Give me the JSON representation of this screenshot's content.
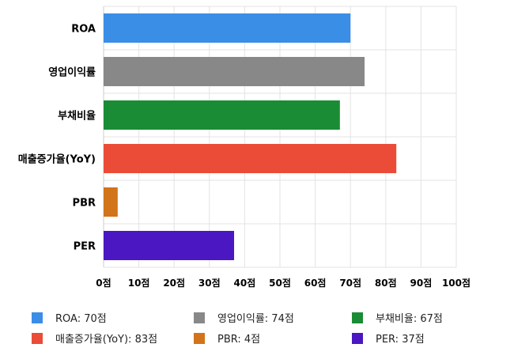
{
  "chart_data": {
    "type": "bar",
    "orientation": "horizontal",
    "categories": [
      "ROA",
      "영업이익률",
      "부채비율",
      "매출증가율(YoY)",
      "PBR",
      "PER"
    ],
    "values": [
      70,
      74,
      67,
      83,
      4,
      37
    ],
    "colors": [
      "#3a8ee6",
      "#888888",
      "#1a8c35",
      "#eb4c37",
      "#d1741a",
      "#4a17c3"
    ],
    "xlim": [
      0,
      100
    ],
    "x_ticks": [
      "0점",
      "10점",
      "20점",
      "30점",
      "40점",
      "50점",
      "60점",
      "70점",
      "80점",
      "90점",
      "100점"
    ],
    "grid": true,
    "legend_position": "bottom",
    "legend": [
      "ROA: 70점",
      "영업이익률: 74점",
      "부채비율: 67점",
      "매출증가율(YoY): 83점",
      "PBR: 4점",
      "PER: 37점"
    ]
  }
}
